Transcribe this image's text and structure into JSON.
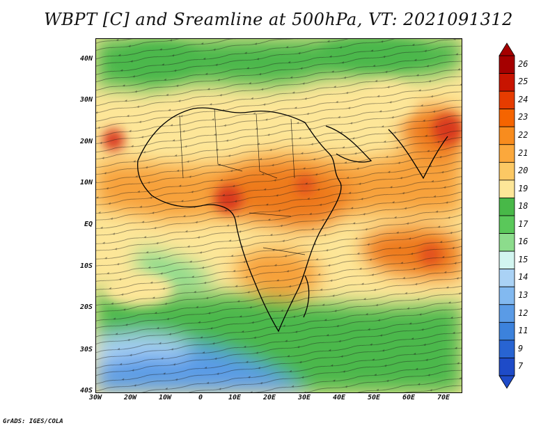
{
  "title": "WBPT [C] and Sreamline at 500hPa, VT: 2021091312",
  "footer": "GrADS: IGES/COLA",
  "y_axis_labels": [
    "40N",
    "30N",
    "20N",
    "10N",
    "EQ",
    "10S",
    "20S",
    "30S",
    "40S"
  ],
  "x_axis_labels": [
    "30W",
    "20W",
    "10W",
    "0",
    "10E",
    "20E",
    "30E",
    "40E",
    "50E",
    "60E",
    "70E"
  ],
  "colorbar": {
    "labels": [
      "26",
      "25",
      "24",
      "23",
      "22",
      "21",
      "20",
      "19",
      "18",
      "17",
      "16",
      "15",
      "14",
      "13",
      "12",
      "11",
      "9",
      "7"
    ],
    "colors": [
      "#a50000",
      "#c81400",
      "#e63c00",
      "#f56400",
      "#f88c1e",
      "#fba83c",
      "#fcc864",
      "#fde698",
      "#48b848",
      "#5ac85a",
      "#8cdc8c",
      "#d2f5f0",
      "#aad2f5",
      "#82b9f0",
      "#5a9be6",
      "#3c82dc",
      "#2864d2",
      "#1e4bc8"
    ]
  },
  "map_colors": {
    "cool_green": "#4cb84c",
    "light_green": "#8cdc8c",
    "pale_yellow": "#fde698",
    "light_orange": "#fcc864",
    "orange": "#f7a13a",
    "dark_orange": "#ee7a1e",
    "red": "#d8381a",
    "blue": "#5a9be6",
    "light_blue": "#aad2f5"
  }
}
